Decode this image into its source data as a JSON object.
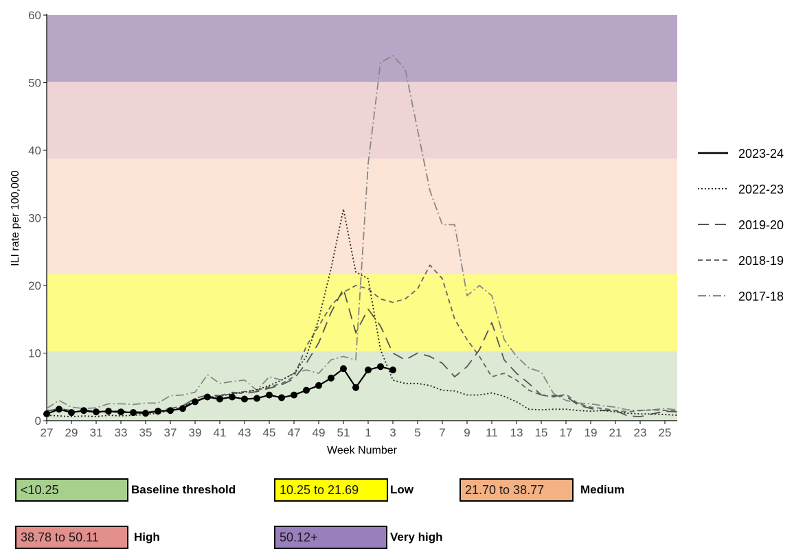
{
  "chart_data": {
    "type": "line",
    "xlabel": "Week Number",
    "ylabel": "ILI rate per 100,000",
    "ylim": [
      0,
      60
    ],
    "yticks": [
      0,
      10,
      20,
      30,
      40,
      50,
      60
    ],
    "weeks": [
      27,
      28,
      29,
      30,
      31,
      32,
      33,
      34,
      35,
      36,
      37,
      38,
      39,
      40,
      41,
      42,
      43,
      44,
      45,
      46,
      47,
      48,
      49,
      50,
      51,
      52,
      1,
      2,
      3,
      4,
      5,
      6,
      7,
      8,
      9,
      10,
      11,
      12,
      13,
      14,
      15,
      16,
      17,
      18,
      19,
      20,
      21,
      22,
      23,
      24,
      25,
      26
    ],
    "xtick_labels": [
      "27",
      "29",
      "31",
      "33",
      "35",
      "37",
      "39",
      "41",
      "43",
      "45",
      "47",
      "49",
      "51",
      "1",
      "3",
      "5",
      "7",
      "9",
      "11",
      "13",
      "15",
      "17",
      "19",
      "21",
      "23",
      "25"
    ],
    "bands": [
      {
        "name": "Baseline threshold",
        "range_label": "<10.25",
        "from": 0,
        "to": 10.25,
        "color": "#dce9d5",
        "key_color": "#a8d08d"
      },
      {
        "name": "Low",
        "range_label": "10.25 to 21.69",
        "from": 10.25,
        "to": 21.69,
        "color": "#fcfc86",
        "key_color": "#ffff00"
      },
      {
        "name": "Medium",
        "range_label": "21.70 to 38.77",
        "from": 21.7,
        "to": 38.77,
        "color": "#fce4d6",
        "key_color": "#f4b183"
      },
      {
        "name": "High",
        "range_label": "38.78 to 50.11",
        "from": 38.78,
        "to": 50.11,
        "color": "#efd4d6",
        "key_color": "#e3908d"
      },
      {
        "name": "Very high",
        "range_label": "50.12+",
        "from": 50.12,
        "to": 60,
        "color": "#b7a6c6",
        "key_color": "#9a7fbd"
      }
    ],
    "series": [
      {
        "name": "2023-24",
        "style": "solid",
        "markers": true,
        "values": [
          1.0,
          1.7,
          1.2,
          1.5,
          1.3,
          1.4,
          1.3,
          1.2,
          1.1,
          1.4,
          1.5,
          1.8,
          2.8,
          3.5,
          3.2,
          3.5,
          3.2,
          3.3,
          3.8,
          3.4,
          3.8,
          4.5,
          5.2,
          6.3,
          7.7,
          4.9,
          7.5,
          8.0,
          7.5
        ]
      },
      {
        "name": "2022-23",
        "style": "dotted",
        "markers": false,
        "values": [
          0.8,
          0.7,
          0.6,
          0.7,
          0.6,
          0.8,
          0.7,
          0.8,
          0.9,
          1.1,
          1.5,
          2.0,
          3.0,
          3.4,
          3.6,
          4.0,
          4.2,
          4.6,
          5.2,
          6.0,
          7.0,
          9.5,
          15.0,
          22.5,
          31.3,
          22.0,
          21.0,
          10.5,
          6.0,
          5.5,
          5.5,
          5.2,
          4.5,
          4.4,
          3.8,
          3.8,
          4.1,
          3.6,
          2.8,
          1.7,
          1.6,
          1.7,
          1.7,
          1.5,
          1.4,
          1.5,
          1.3,
          1.1,
          1.0,
          1.0,
          0.9,
          0.8
        ]
      },
      {
        "name": "2019-20",
        "style": "longdash",
        "markers": false,
        "values": [
          1.4,
          1.8,
          1.5,
          1.6,
          1.3,
          1.4,
          1.4,
          1.3,
          1.3,
          1.4,
          1.8,
          2.2,
          3.3,
          3.8,
          3.7,
          4.2,
          4.0,
          4.3,
          4.8,
          5.3,
          6.2,
          8.5,
          11.5,
          16.0,
          19.5,
          13.0,
          16.5,
          14.0,
          10.0,
          9.0,
          10.0,
          9.5,
          8.5,
          6.5,
          8.0,
          10.5,
          14.5,
          9.0,
          7.0,
          5.5,
          3.8,
          3.7,
          3.6,
          2.3,
          1.8,
          1.5,
          1.5,
          0.7,
          0.6,
          1.0,
          1.4,
          1.3
        ]
      },
      {
        "name": "2018-19",
        "style": "dash",
        "markers": false,
        "values": [
          1.5,
          1.6,
          1.3,
          1.4,
          1.2,
          1.3,
          1.2,
          1.3,
          1.2,
          1.3,
          1.6,
          2.0,
          3.0,
          3.5,
          3.6,
          4.0,
          4.3,
          4.5,
          5.0,
          5.5,
          6.5,
          11.0,
          14.0,
          17.0,
          19.0,
          20.0,
          19.5,
          18.0,
          17.5,
          18.0,
          19.5,
          23.0,
          21.0,
          15.0,
          12.0,
          9.5,
          6.5,
          7.0,
          6.0,
          4.5,
          3.8,
          3.5,
          3.9,
          2.5,
          2.0,
          1.8,
          1.5,
          1.3,
          1.5,
          1.6,
          1.5,
          1.4
        ]
      },
      {
        "name": "2017-18",
        "style": "dashdot",
        "markers": false,
        "values": [
          1.8,
          3.0,
          2.0,
          1.8,
          1.9,
          2.5,
          2.5,
          2.4,
          2.6,
          2.6,
          3.7,
          3.8,
          4.2,
          6.8,
          5.5,
          5.8,
          6.0,
          4.5,
          6.5,
          6.0,
          7.0,
          7.5,
          7.0,
          9.0,
          9.5,
          9.0,
          38.0,
          53.0,
          54.0,
          52.0,
          43.0,
          34.0,
          29.0,
          29.0,
          18.5,
          20.0,
          18.5,
          12.0,
          9.5,
          7.8,
          7.2,
          4.0,
          3.0,
          2.6,
          2.5,
          2.2,
          2.0,
          1.6,
          1.5,
          1.6,
          1.8,
          1.6
        ]
      }
    ]
  }
}
